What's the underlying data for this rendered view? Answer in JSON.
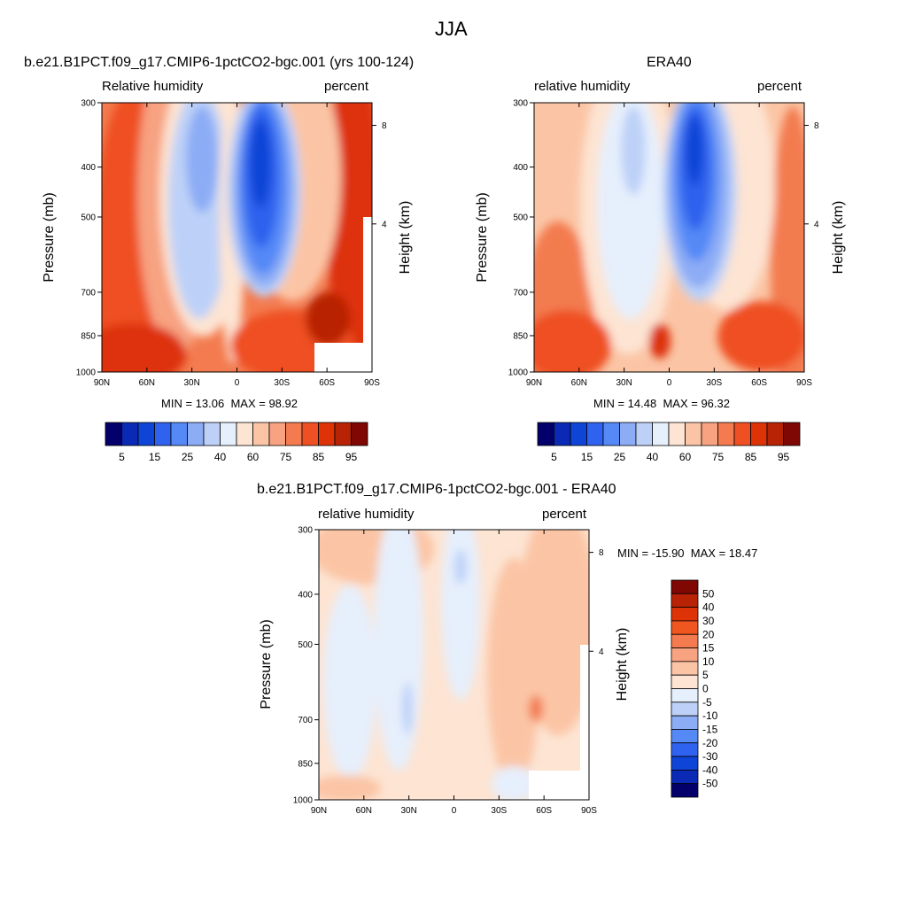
{
  "figure": {
    "main_title": "JJA",
    "y_axis_left_title": "Pressure (mb)",
    "y_axis_right_title": "Height (km)"
  },
  "chart_data": [
    {
      "type": "heatmap",
      "panel": "model",
      "title": "b.e21.B1PCT.f09_g17.CMIP6-1pctCO2-bgc.001 (yrs 100-124)",
      "left_label": "Relative humidity",
      "right_label": "percent",
      "x_ticks": [
        "90N",
        "60N",
        "30N",
        "0",
        "30S",
        "60S",
        "90S"
      ],
      "y_ticks": [
        "300",
        "400",
        "500",
        "700",
        "850",
        "1000"
      ],
      "height_ticks": [
        "8",
        "4"
      ],
      "ylabel": "Pressure (mb)",
      "ylabel_right": "Height (km)",
      "min_label": "MIN =",
      "min_value": "13.06",
      "max_label": "MAX =",
      "max_value": "98.92",
      "colorbar_labels": [
        "5",
        "15",
        "25",
        "40",
        "60",
        "75",
        "85",
        "95"
      ],
      "colorbar_colors": [
        "#03006b",
        "#0a2ab5",
        "#0f45d6",
        "#2f62ee",
        "#5589f6",
        "#8cacf5",
        "#bdd1f8",
        "#e6effc",
        "#fde4d3",
        "#fbc5a5",
        "#f7a281",
        "#f37b4f",
        "#ef5023",
        "#dd3307",
        "#b82205",
        "#7f0704"
      ]
    },
    {
      "type": "heatmap",
      "panel": "obs",
      "title": "ERA40",
      "left_label": "relative humidity",
      "right_label": "percent",
      "x_ticks": [
        "90N",
        "60N",
        "30N",
        "0",
        "30S",
        "60S",
        "90S"
      ],
      "y_ticks": [
        "300",
        "400",
        "500",
        "700",
        "850",
        "1000"
      ],
      "height_ticks": [
        "8",
        "4"
      ],
      "ylabel": "Pressure (mb)",
      "ylabel_right": "Height (km)",
      "min_label": "MIN =",
      "min_value": "14.48",
      "max_label": "MAX =",
      "max_value": "96.32",
      "colorbar_labels": [
        "5",
        "15",
        "25",
        "40",
        "60",
        "75",
        "85",
        "95"
      ],
      "colorbar_colors": [
        "#03006b",
        "#0a2ab5",
        "#0f45d6",
        "#2f62ee",
        "#5589f6",
        "#8cacf5",
        "#bdd1f8",
        "#e6effc",
        "#fde4d3",
        "#fbc5a5",
        "#f7a281",
        "#f37b4f",
        "#ef5023",
        "#dd3307",
        "#b82205",
        "#7f0704"
      ]
    },
    {
      "type": "heatmap",
      "panel": "difference",
      "title": "b.e21.B1PCT.f09_g17.CMIP6-1pctCO2-bgc.001 - ERA40",
      "left_label": "relative humidity",
      "right_label": "percent",
      "x_ticks": [
        "90N",
        "60N",
        "30N",
        "0",
        "30S",
        "60S",
        "90S"
      ],
      "y_ticks": [
        "300",
        "400",
        "500",
        "700",
        "850",
        "1000"
      ],
      "height_ticks": [
        "8",
        "4"
      ],
      "ylabel": "Pressure (mb)",
      "ylabel_right": "Height (km)",
      "min_label": "MIN =",
      "min_value": "-15.90",
      "max_label": "MAX =",
      "max_value": "18.47",
      "colorbar_labels": [
        "50",
        "40",
        "30",
        "20",
        "15",
        "10",
        "5",
        "0",
        "-5",
        "-10",
        "-15",
        "-20",
        "-30",
        "-40",
        "-50"
      ],
      "colorbar_colors": [
        "#7f0704",
        "#b82205",
        "#dd3307",
        "#f0561f",
        "#f37b4f",
        "#f7a281",
        "#fbc5a5",
        "#fde4d3",
        "#e6effc",
        "#bdd1f8",
        "#8cacf5",
        "#5589f6",
        "#2f62ee",
        "#0f45d6",
        "#0a2ab5",
        "#03006b"
      ]
    }
  ]
}
